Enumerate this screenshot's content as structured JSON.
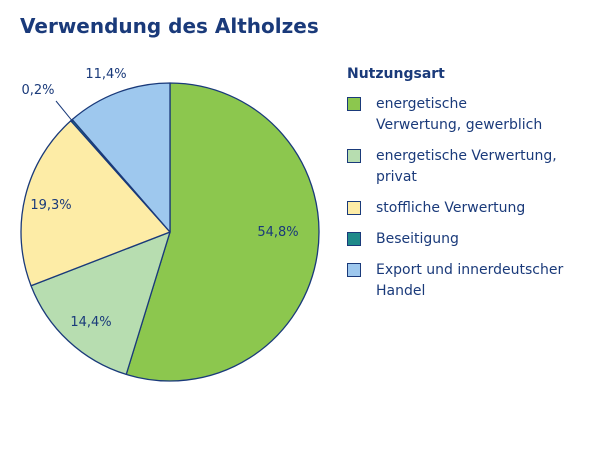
{
  "chart_data": {
    "type": "pie",
    "title": "Verwendung des Altholzes",
    "legend_title": "Nutzungsart",
    "legend_position": "right",
    "outline_color": "#1a3a7a",
    "slices": [
      {
        "label": "energetische Verwertung, gewerblich",
        "value": 54.8,
        "value_label": "54,8%",
        "color": "#8cc74e"
      },
      {
        "label": "energetische Verwertung, privat",
        "value": 14.4,
        "value_label": "14,4%",
        "color": "#b7ddb0"
      },
      {
        "label": "stoffliche Verwertung",
        "value": 19.3,
        "value_label": "19,3%",
        "color": "#fdeca6"
      },
      {
        "label": "Beseitigung",
        "value": 0.2,
        "value_label": "0,2%",
        "color": "#1f8a8a"
      },
      {
        "label": "Export und innerdeutscher Handel",
        "value": 11.4,
        "value_label": "11,4%",
        "color": "#9ec8ee"
      }
    ]
  },
  "legend_lines": [
    [
      "energetische",
      "Verwertung, gewerblich"
    ],
    [
      "energetische Verwertung,",
      "privat"
    ],
    [
      "stoffliche Verwertung"
    ],
    [
      "Beseitigung"
    ],
    [
      "Export und innerdeutscher",
      "Handel"
    ]
  ]
}
